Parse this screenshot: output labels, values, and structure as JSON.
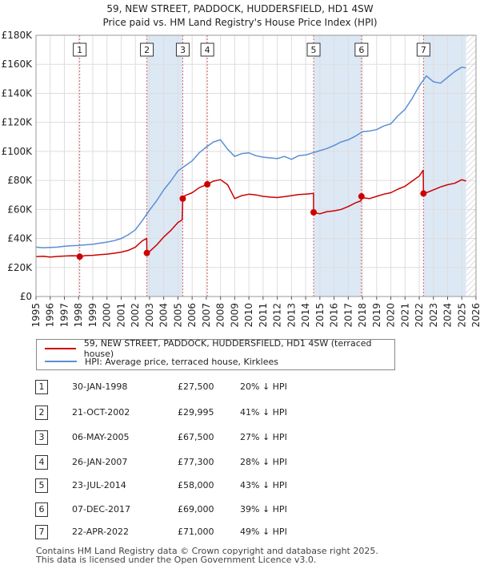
{
  "chart_data": {
    "type": "line",
    "title": "59, NEW STREET, PADDOCK, HUDDERSFIELD, HD1 4SW",
    "subtitle": "Price paid vs. HM Land Registry's House Price Index (HPI)",
    "xlim": [
      1995,
      2026
    ],
    "ylim": [
      0,
      180000
    ],
    "y_ticks": [
      {
        "value": 0,
        "label": "£0"
      },
      {
        "value": 20000,
        "label": "£20K"
      },
      {
        "value": 40000,
        "label": "£40K"
      },
      {
        "value": 60000,
        "label": "£60K"
      },
      {
        "value": 80000,
        "label": "£80K"
      },
      {
        "value": 100000,
        "label": "£100K"
      },
      {
        "value": 120000,
        "label": "£120K"
      },
      {
        "value": 140000,
        "label": "£140K"
      },
      {
        "value": 160000,
        "label": "£160K"
      },
      {
        "value": 180000,
        "label": "£180K"
      }
    ],
    "x_ticks": [
      "1995",
      "1996",
      "1997",
      "1998",
      "1999",
      "2000",
      "2001",
      "2002",
      "2003",
      "2004",
      "2005",
      "2006",
      "2007",
      "2008",
      "2009",
      "2010",
      "2011",
      "2012",
      "2013",
      "2014",
      "2015",
      "2016",
      "2017",
      "2018",
      "2019",
      "2020",
      "2021",
      "2022",
      "2023",
      "2024",
      "2025",
      "2026"
    ],
    "grid": true,
    "colors": {
      "property": "#cc0000",
      "hpi": "#5b8fd4",
      "band": "#dde8f5",
      "marker_line": "#e06060",
      "future_hatch": "#bbbbbb"
    },
    "series": [
      {
        "name": "59, NEW STREET, PADDOCK, HUDDERSFIELD, HD1 4SW (terraced house)",
        "x": [
          1995.0,
          1995.5,
          1996.0,
          1996.5,
          1997.0,
          1997.5,
          1998.0,
          1998.08,
          1998.5,
          1999.0,
          1999.5,
          2000.0,
          2000.5,
          2001.0,
          2001.5,
          2002.0,
          2002.5,
          2002.8,
          2002.81,
          2003.0,
          2003.5,
          2004.0,
          2004.5,
          2005.0,
          2005.3,
          2005.34,
          2005.5,
          2006.0,
          2006.5,
          2007.0,
          2007.07,
          2007.5,
          2008.0,
          2008.5,
          2009.0,
          2009.5,
          2010.0,
          2010.5,
          2011.0,
          2011.5,
          2012.0,
          2012.5,
          2013.0,
          2013.5,
          2014.0,
          2014.5,
          2014.55,
          2014.56,
          2015.0,
          2015.5,
          2016.0,
          2016.5,
          2017.0,
          2017.5,
          2017.9,
          2017.93,
          2018.0,
          2018.5,
          2019.0,
          2019.5,
          2020.0,
          2020.5,
          2021.0,
          2021.5,
          2022.0,
          2022.28,
          2022.3,
          2022.5,
          2023.0,
          2023.5,
          2024.0,
          2024.5,
          2025.0,
          2025.3
        ],
        "values": [
          27500,
          27800,
          27200,
          27600,
          27900,
          28100,
          28000,
          27500,
          28200,
          28400,
          28800,
          29200,
          29800,
          30600,
          31800,
          34000,
          38500,
          40000,
          29995,
          31000,
          35500,
          41000,
          45500,
          51000,
          52800,
          67500,
          69500,
          71500,
          75000,
          77000,
          77300,
          79500,
          80500,
          77000,
          67500,
          69500,
          70500,
          70000,
          69000,
          68500,
          68200,
          68800,
          69500,
          70300,
          70500,
          71000,
          71200,
          58000,
          57000,
          58500,
          59000,
          60000,
          62000,
          64500,
          66000,
          69000,
          68000,
          67500,
          69000,
          70500,
          71500,
          74000,
          76000,
          79500,
          83000,
          87000,
          71000,
          71500,
          73500,
          75500,
          77000,
          78000,
          80500,
          79500
        ]
      },
      {
        "name": "HPI: Average price, terraced house, Kirklees",
        "x": [
          1995.0,
          1995.5,
          1996.0,
          1996.5,
          1997.0,
          1997.5,
          1998.0,
          1998.5,
          1999.0,
          1999.5,
          2000.0,
          2000.5,
          2001.0,
          2001.5,
          2002.0,
          2002.5,
          2003.0,
          2003.5,
          2004.0,
          2004.5,
          2005.0,
          2005.5,
          2006.0,
          2006.5,
          2007.0,
          2007.5,
          2008.0,
          2008.5,
          2009.0,
          2009.5,
          2010.0,
          2010.5,
          2011.0,
          2011.5,
          2012.0,
          2012.5,
          2013.0,
          2013.5,
          2014.0,
          2014.5,
          2015.0,
          2015.5,
          2016.0,
          2016.5,
          2017.0,
          2017.5,
          2018.0,
          2018.5,
          2019.0,
          2019.5,
          2020.0,
          2020.5,
          2021.0,
          2021.5,
          2022.0,
          2022.5,
          2023.0,
          2023.5,
          2024.0,
          2024.5,
          2025.0,
          2025.3
        ],
        "values": [
          34000,
          33600,
          33800,
          34000,
          34600,
          35000,
          35200,
          35600,
          36000,
          36800,
          37500,
          38500,
          40000,
          42500,
          46000,
          52500,
          59500,
          66000,
          73500,
          79500,
          86500,
          90000,
          93500,
          99000,
          103000,
          106500,
          108000,
          101500,
          96500,
          98500,
          99000,
          97000,
          96000,
          95500,
          95000,
          96500,
          94500,
          97000,
          97500,
          99000,
          100500,
          102000,
          104000,
          106500,
          108000,
          110500,
          113500,
          114000,
          115000,
          117500,
          119000,
          124500,
          129000,
          136500,
          145000,
          152000,
          148000,
          147000,
          151000,
          155000,
          158000,
          157500
        ]
      }
    ],
    "transactions": [
      {
        "id": "1",
        "date": "30-JAN-1998",
        "year": 1998.08,
        "price": 27500,
        "price_label": "£27,500",
        "hpi_label": "20% ↓ HPI"
      },
      {
        "id": "2",
        "date": "21-OCT-2002",
        "year": 2002.81,
        "price": 29995,
        "price_label": "£29,995",
        "hpi_label": "41% ↓ HPI"
      },
      {
        "id": "3",
        "date": "06-MAY-2005",
        "year": 2005.34,
        "price": 67500,
        "price_label": "£67,500",
        "hpi_label": "27% ↓ HPI"
      },
      {
        "id": "4",
        "date": "26-JAN-2007",
        "year": 2007.07,
        "price": 77300,
        "price_label": "£77,300",
        "hpi_label": "28% ↓ HPI"
      },
      {
        "id": "5",
        "date": "23-JUL-2014",
        "year": 2014.56,
        "price": 58000,
        "price_label": "£58,000",
        "hpi_label": "43% ↓ HPI"
      },
      {
        "id": "6",
        "date": "07-DEC-2017",
        "year": 2017.93,
        "price": 69000,
        "price_label": "£69,000",
        "hpi_label": "39% ↓ HPI"
      },
      {
        "id": "7",
        "date": "22-APR-2022",
        "year": 2022.3,
        "price": 71000,
        "price_label": "£71,000",
        "hpi_label": "49% ↓ HPI"
      }
    ],
    "shaded_periods": [
      [
        2002.81,
        2005.34
      ],
      [
        2014.56,
        2017.93
      ],
      [
        2022.3,
        2025.3
      ]
    ],
    "future_from": 2025.3
  },
  "legend": {
    "property_label": "59, NEW STREET, PADDOCK, HUDDERSFIELD, HD1 4SW (terraced house)",
    "hpi_label": "HPI: Average price, terraced house, Kirklees"
  },
  "footer": {
    "line1": "Contains HM Land Registry data © Crown copyright and database right 2025.",
    "line2": "This data is licensed under the Open Government Licence v3.0."
  }
}
